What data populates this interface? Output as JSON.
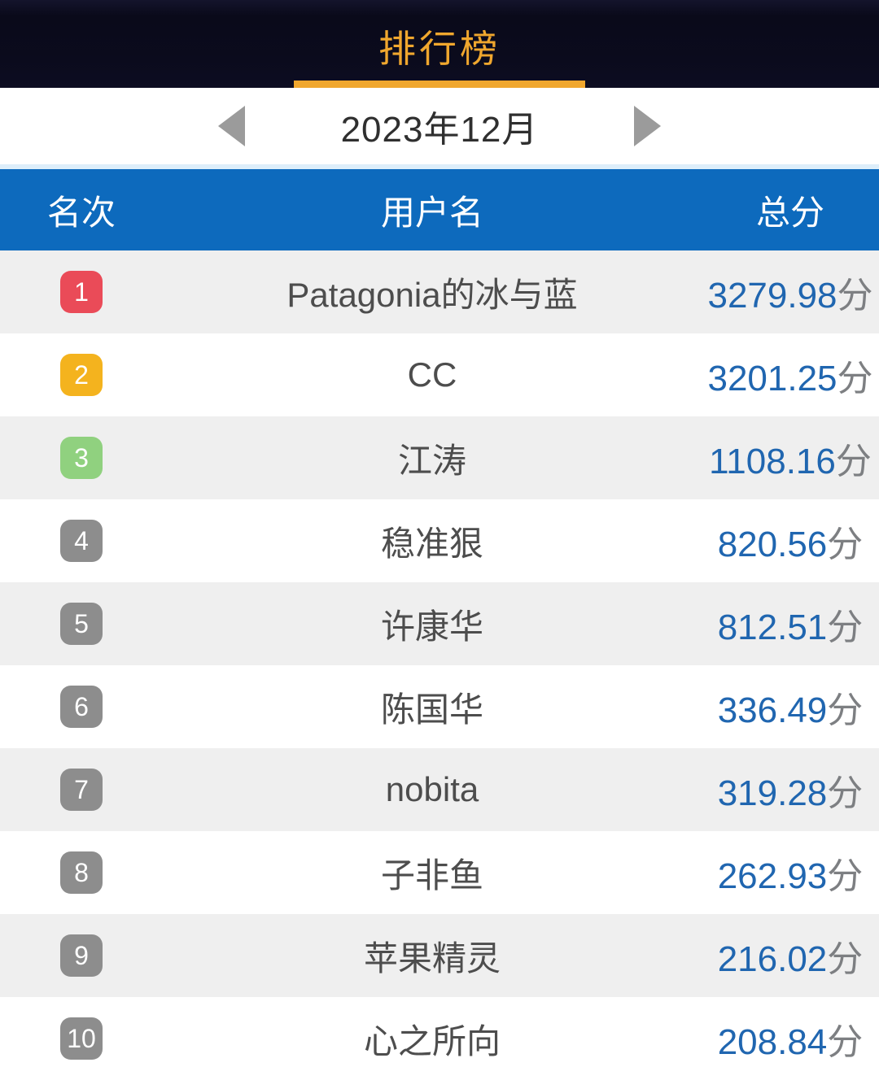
{
  "header": {
    "title": "排行榜"
  },
  "date_nav": {
    "label": "2023年12月"
  },
  "table": {
    "columns": {
      "rank": "名次",
      "username": "用户名",
      "score": "总分"
    },
    "rows": [
      {
        "rank": "1",
        "username": "Patagonia的冰与蓝",
        "score": "3279.98",
        "suffix": "分",
        "badge_color": "#ea4b58"
      },
      {
        "rank": "2",
        "username": "CC",
        "score": "3201.25",
        "suffix": "分",
        "badge_color": "#f4b31e"
      },
      {
        "rank": "3",
        "username": "江涛",
        "score": "1108.16",
        "suffix": "分",
        "badge_color": "#90d17f"
      },
      {
        "rank": "4",
        "username": "稳准狠",
        "score": "820.56",
        "suffix": "分",
        "badge_color": "#8d8d8d"
      },
      {
        "rank": "5",
        "username": "许康华",
        "score": "812.51",
        "suffix": "分",
        "badge_color": "#8d8d8d"
      },
      {
        "rank": "6",
        "username": "陈国华",
        "score": "336.49",
        "suffix": "分",
        "badge_color": "#8d8d8d"
      },
      {
        "rank": "7",
        "username": "nobita",
        "score": "319.28",
        "suffix": "分",
        "badge_color": "#8d8d8d"
      },
      {
        "rank": "8",
        "username": "子非鱼",
        "score": "262.93",
        "suffix": "分",
        "badge_color": "#8d8d8d"
      },
      {
        "rank": "9",
        "username": "苹果精灵",
        "score": "216.02",
        "suffix": "分",
        "badge_color": "#8d8d8d"
      },
      {
        "rank": "10",
        "username": "心之所向",
        "score": "208.84",
        "suffix": "分",
        "badge_color": "#8d8d8d"
      }
    ]
  },
  "colors": {
    "accent_orange": "#f0a72e",
    "header_blue": "#0d6abd",
    "score_blue": "#2066b0",
    "dark_header_bg": "#0b0b1d",
    "row_alt_gray": "#efefef",
    "row_white": "#ffffff"
  }
}
